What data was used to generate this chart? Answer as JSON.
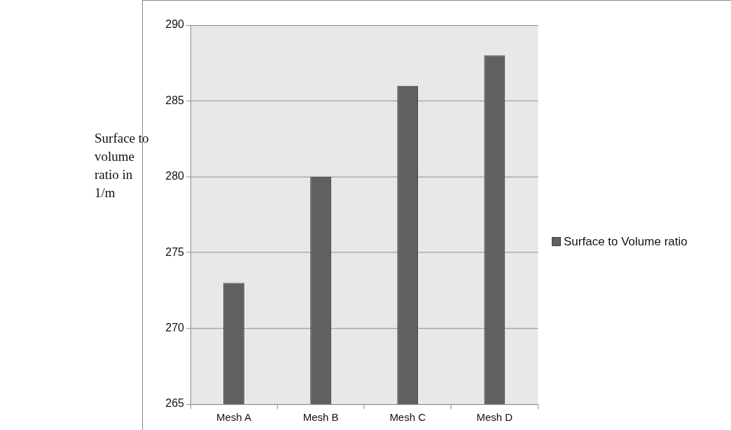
{
  "chart_data": {
    "type": "bar",
    "ylabel": "Surface to volume ratio in 1/m",
    "categories": [
      "Mesh A",
      "Mesh B",
      "Mesh C",
      "Mesh D"
    ],
    "series": [
      {
        "name": "Surface to Volume ratio",
        "color": "#606060",
        "values": [
          273,
          280,
          286,
          288
        ]
      }
    ],
    "ylim": [
      265,
      290
    ],
    "yticks": [
      265,
      270,
      275,
      280,
      285,
      290
    ],
    "grid": "y",
    "legend": "right"
  }
}
